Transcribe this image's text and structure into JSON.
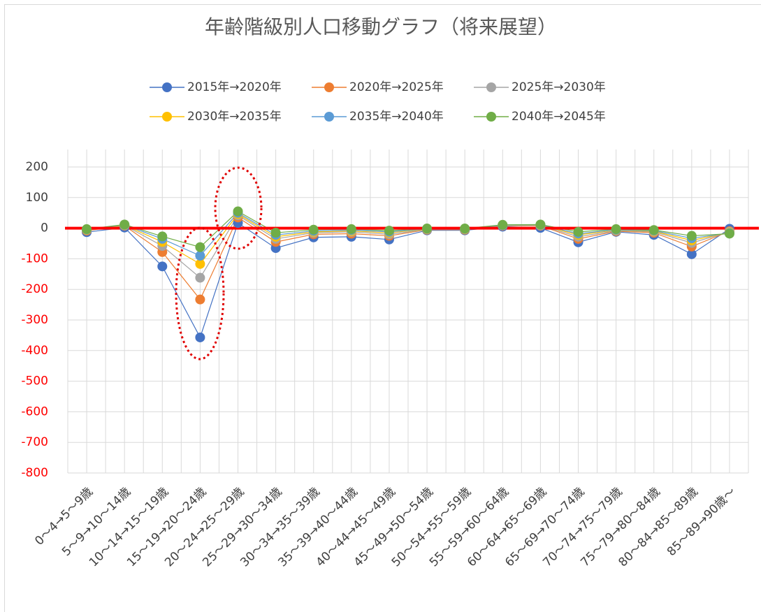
{
  "chart_data": {
    "type": "line",
    "title": "年齢階級別人口移動グラフ（将来展望）",
    "categories": [
      "0～4→5～9歳",
      "5～9→10～14歳",
      "10～14→15～19歳",
      "15～19→20～24歳",
      "20～24→25～29歳",
      "25～29→30～34歳",
      "30～34→35～39歳",
      "35～39→40～44歳",
      "40～44→45～49歳",
      "45～49→50～54歳",
      "50～54→55～59歳",
      "55～59→60～64歳",
      "60～64→65～69歳",
      "65～69→70～74歳",
      "70～74→75～79歳",
      "75～79→80～84歳",
      "80～84→85～89歳",
      "85～89→90歳～"
    ],
    "series": [
      {
        "name": "2015年→2020年",
        "color": "#4472c4",
        "values": [
          -13,
          2,
          -125,
          -357,
          17,
          -65,
          -30,
          -28,
          -37,
          -7,
          -7,
          5,
          1,
          -46,
          -12,
          -22,
          -85,
          -2
        ]
      },
      {
        "name": "2020年→2025年",
        "color": "#ed7d31",
        "values": [
          -8,
          8,
          -78,
          -233,
          35,
          -45,
          -20,
          -18,
          -25,
          -5,
          -5,
          8,
          8,
          -35,
          -10,
          -15,
          -60,
          -10
        ]
      },
      {
        "name": "2025年→2030年",
        "color": "#a5a5a5",
        "values": [
          -6,
          9,
          -58,
          -162,
          42,
          -35,
          -15,
          -12,
          -20,
          -4,
          -4,
          9,
          9,
          -28,
          -8,
          -12,
          -48,
          -12
        ]
      },
      {
        "name": "2030年→2035年",
        "color": "#ffc000",
        "values": [
          -5,
          10,
          -45,
          -117,
          46,
          -28,
          -12,
          -9,
          -15,
          -3,
          -3,
          10,
          10,
          -22,
          -6,
          -10,
          -40,
          -14
        ]
      },
      {
        "name": "2035年→2040年",
        "color": "#5b9bd5",
        "values": [
          -4,
          11,
          -35,
          -90,
          50,
          -22,
          -9,
          -6,
          -12,
          -2,
          -2,
          10,
          11,
          -18,
          -5,
          -8,
          -33,
          -16
        ]
      },
      {
        "name": "2040年→2045年",
        "color": "#70ad47",
        "values": [
          -3,
          12,
          -27,
          -62,
          55,
          -15,
          -5,
          -3,
          -8,
          -1,
          -1,
          11,
          12,
          -12,
          -3,
          -6,
          -25,
          -18
        ]
      }
    ],
    "ylim": [
      -800,
      200
    ],
    "yticks": [
      -800,
      -700,
      -600,
      -500,
      -400,
      -300,
      -200,
      -100,
      0,
      100,
      200
    ],
    "grid": true,
    "negative_tick_color": "#ff0000",
    "legend": "top",
    "reference_line": {
      "value": 0,
      "color": "#ff0000"
    }
  }
}
